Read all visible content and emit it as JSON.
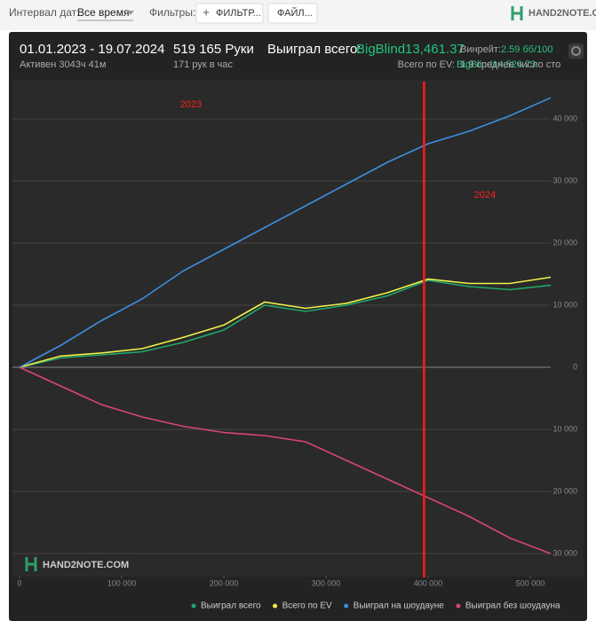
{
  "toolbar": {
    "date_label": "Интервал дат:",
    "date_value": "Все время",
    "filters_label": "Фильтры:",
    "filter_button": "ФИЛЬТР...",
    "file_button": "ФАЙЛ...",
    "logo": "HAND2NOTE.COM"
  },
  "stats": {
    "period": "01.01.2023 - 19.07.2024",
    "active": "Активен 3043ч 41м",
    "hands": "519 165 Руки",
    "hands_per_hour": "171 рук в час",
    "won_label": "Выиграл всего:",
    "won_value": "BigBlind13,461.37",
    "ev_label": "Всего по EV:",
    "ev_value": "BigBlind14,526.73",
    "winrate_label": "Винрейт:",
    "winrate_value": "2.59 бб/100",
    "tables": "1.9 среднее число сто"
  },
  "chart_data": {
    "type": "line",
    "watermark": "HAND2NOTE.COM",
    "annotations": [
      "2023",
      "2024"
    ],
    "marker_line": {
      "x": 396000,
      "color": "#ff1a1a"
    },
    "x": [
      0,
      40000,
      80000,
      120000,
      160000,
      200000,
      240000,
      280000,
      320000,
      360000,
      400000,
      440000,
      480000,
      520000
    ],
    "series": [
      {
        "name": "Выиграл всего",
        "color": "#1fa86a",
        "values": [
          0,
          1500,
          2000,
          2500,
          4000,
          6000,
          10000,
          9000,
          10000,
          11500,
          14000,
          13000,
          12500,
          13200
        ]
      },
      {
        "name": "Всего по EV",
        "color": "#f0f04a",
        "values": [
          0,
          1800,
          2300,
          3000,
          4800,
          6800,
          10500,
          9500,
          10300,
          12000,
          14200,
          13500,
          13500,
          14500
        ]
      },
      {
        "name": "Выиграл на шоудауне",
        "color": "#3d8fe0",
        "values": [
          0,
          3500,
          7500,
          11000,
          15500,
          19000,
          22500,
          26000,
          29500,
          33000,
          36000,
          38000,
          40500,
          43400
        ]
      },
      {
        "name": "Выиграл без шоудауна",
        "color": "#d9466e",
        "values": [
          0,
          -3000,
          -6000,
          -8000,
          -9500,
          -10500,
          -11000,
          -12000,
          -15000,
          -18000,
          -21000,
          -24000,
          -27500,
          -30000
        ]
      }
    ],
    "xlim": [
      0,
      520000
    ],
    "xticks": [
      0,
      {
        "value": 100000,
        "label": "100 000"
      },
      {
        "value": 200000,
        "label": "200 000"
      },
      {
        "value": 300000,
        "label": "300 000"
      },
      {
        "value": 400000,
        "label": "400 000"
      },
      {
        "value": 500000,
        "label": "500 000"
      }
    ],
    "ylim": [
      -33000,
      46000
    ],
    "yticks": [
      {
        "value": -30000,
        "label": "30 000"
      },
      {
        "value": -20000,
        "label": "20 000"
      },
      {
        "value": -10000,
        "label": "10 000"
      },
      0,
      {
        "value": 10000,
        "label": "10 000"
      },
      {
        "value": 20000,
        "label": "20 000"
      },
      {
        "value": 30000,
        "label": "30 000"
      },
      {
        "value": 40000,
        "label": "40 000"
      }
    ],
    "grid": true
  }
}
